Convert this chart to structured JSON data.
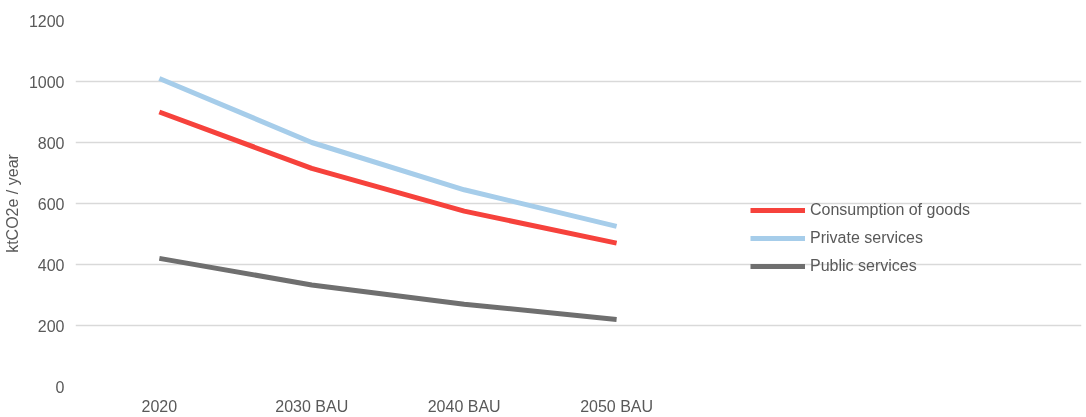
{
  "chart_data": {
    "type": "line",
    "ylabel": "ktCO2e / year",
    "categories": [
      "2020",
      "2030 BAU",
      "2040 BAU",
      "2050 BAU"
    ],
    "series": [
      {
        "name": "Consumption of goods",
        "color": "#f6423c",
        "values": [
          900,
          715,
          575,
          470
        ]
      },
      {
        "name": "Private services",
        "color": "#a6cdea",
        "values": [
          1010,
          800,
          645,
          525
        ]
      },
      {
        "name": "Public services",
        "color": "#6f6f6f",
        "values": [
          420,
          333,
          270,
          220
        ]
      }
    ],
    "ylim": [
      0,
      1200
    ],
    "yticks": [
      0,
      200,
      400,
      600,
      800,
      1000,
      1200
    ],
    "grid": "y",
    "legend": "right",
    "marker": "none",
    "line_style": "solid"
  }
}
